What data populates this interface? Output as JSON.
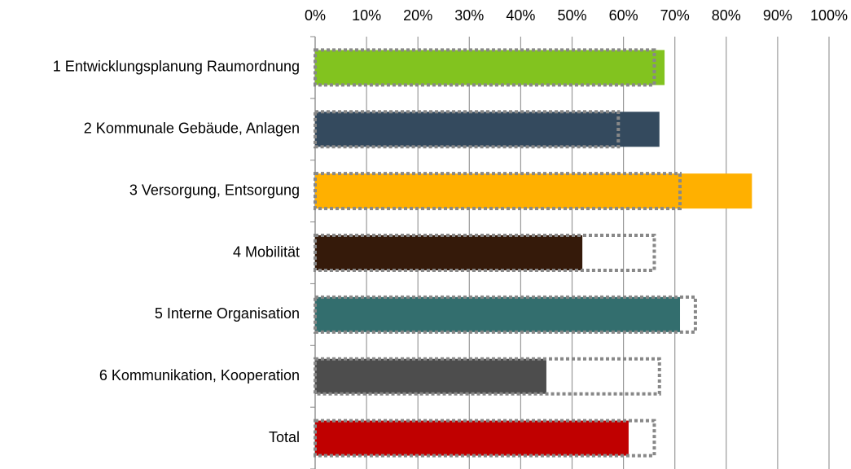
{
  "chart_data": {
    "type": "hbar",
    "categories": [
      "1 Entwicklungsplanung Raumordnung",
      "2 Kommunale Gebäude, Anlagen",
      "3 Versorgung, Entsorgung",
      "4 Mobilität",
      "5 Interne Organisation",
      "6 Kommunikation, Kooperation",
      "Total"
    ],
    "series": [
      {
        "colors": [
          "#82c31f",
          "#344a5e",
          "#ffb000",
          "#351a0a",
          "#336e6e",
          "#4d4d4d",
          "#c00000"
        ],
        "values": [
          68,
          67,
          85,
          52,
          71,
          45,
          61
        ]
      },
      {
        "color": "#888888",
        "dotted": true,
        "values": [
          66,
          59,
          71,
          66,
          74,
          67,
          66
        ]
      }
    ],
    "xlim": [
      0,
      100
    ],
    "xticks": [
      {
        "value": 0,
        "label": "0%"
      },
      {
        "value": 10,
        "label": "10%"
      },
      {
        "value": 20,
        "label": "20%"
      },
      {
        "value": 30,
        "label": "30%"
      },
      {
        "value": 40,
        "label": "40%"
      },
      {
        "value": 50,
        "label": "50%"
      },
      {
        "value": 60,
        "label": "60%"
      },
      {
        "value": 70,
        "label": "70%"
      },
      {
        "value": 80,
        "label": "80%"
      },
      {
        "value": 90,
        "label": "90%"
      },
      {
        "value": 100,
        "label": "100%"
      }
    ],
    "grid": true
  }
}
